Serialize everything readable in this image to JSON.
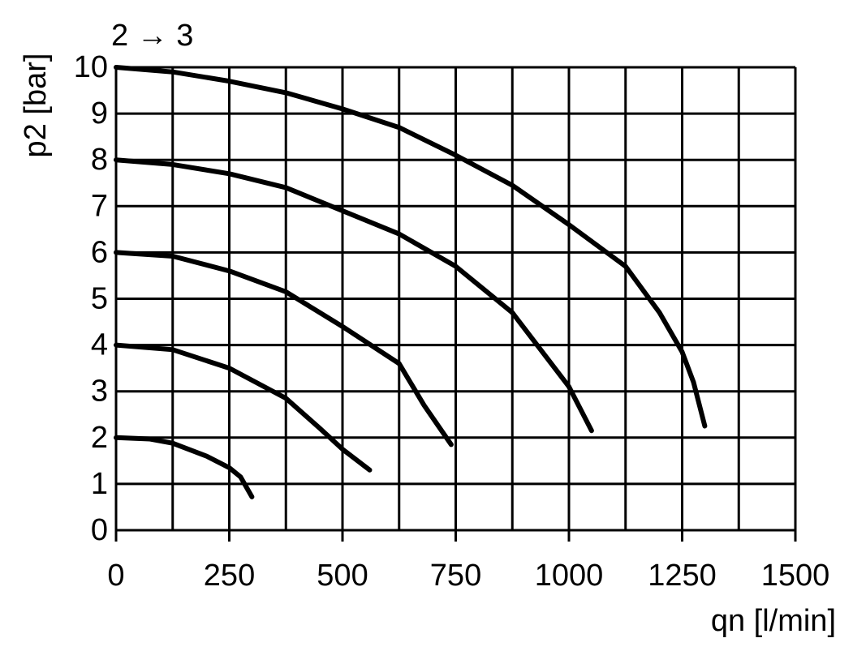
{
  "chart_data": {
    "type": "line",
    "title": "2 → 3",
    "x_label": "qn [l/min]",
    "y_label": "p2 [bar]",
    "xlim": [
      0,
      1500
    ],
    "xticks": [
      0,
      250,
      500,
      750,
      1000,
      1250,
      1500
    ],
    "xgrid": [
      125,
      375,
      625,
      875,
      1125,
      1375
    ],
    "ylim": [
      0,
      10
    ],
    "yticks": [
      0,
      1,
      2,
      3,
      4,
      5,
      6,
      7,
      8,
      9,
      10
    ],
    "grid": true,
    "series": [
      {
        "color": "#000000",
        "x": [
          0,
          75,
          125,
          200,
          250,
          275,
          300
        ],
        "values": [
          2,
          1.97,
          1.88,
          1.6,
          1.35,
          1.15,
          0.72
        ]
      },
      {
        "color": "#000000",
        "x": [
          0,
          125,
          250,
          375,
          450,
          500,
          560
        ],
        "values": [
          4,
          3.9,
          3.5,
          2.85,
          2.2,
          1.75,
          1.3
        ]
      },
      {
        "color": "#000000",
        "x": [
          0,
          125,
          250,
          375,
          500,
          625,
          680,
          740
        ],
        "values": [
          6,
          5.92,
          5.6,
          5.15,
          4.4,
          3.6,
          2.7,
          1.85
        ]
      },
      {
        "color": "#000000",
        "x": [
          0,
          125,
          250,
          375,
          500,
          625,
          750,
          875,
          1000,
          1050
        ],
        "values": [
          8,
          7.9,
          7.7,
          7.4,
          6.9,
          6.4,
          5.7,
          4.7,
          3.1,
          2.15
        ]
      },
      {
        "color": "#000000",
        "x": [
          0,
          125,
          250,
          375,
          500,
          625,
          750,
          875,
          1000,
          1125,
          1200,
          1250,
          1275,
          1300
        ],
        "values": [
          10,
          9.9,
          9.7,
          9.45,
          9.1,
          8.7,
          8.1,
          7.45,
          6.6,
          5.7,
          4.7,
          3.85,
          3.2,
          2.25
        ]
      }
    ]
  }
}
